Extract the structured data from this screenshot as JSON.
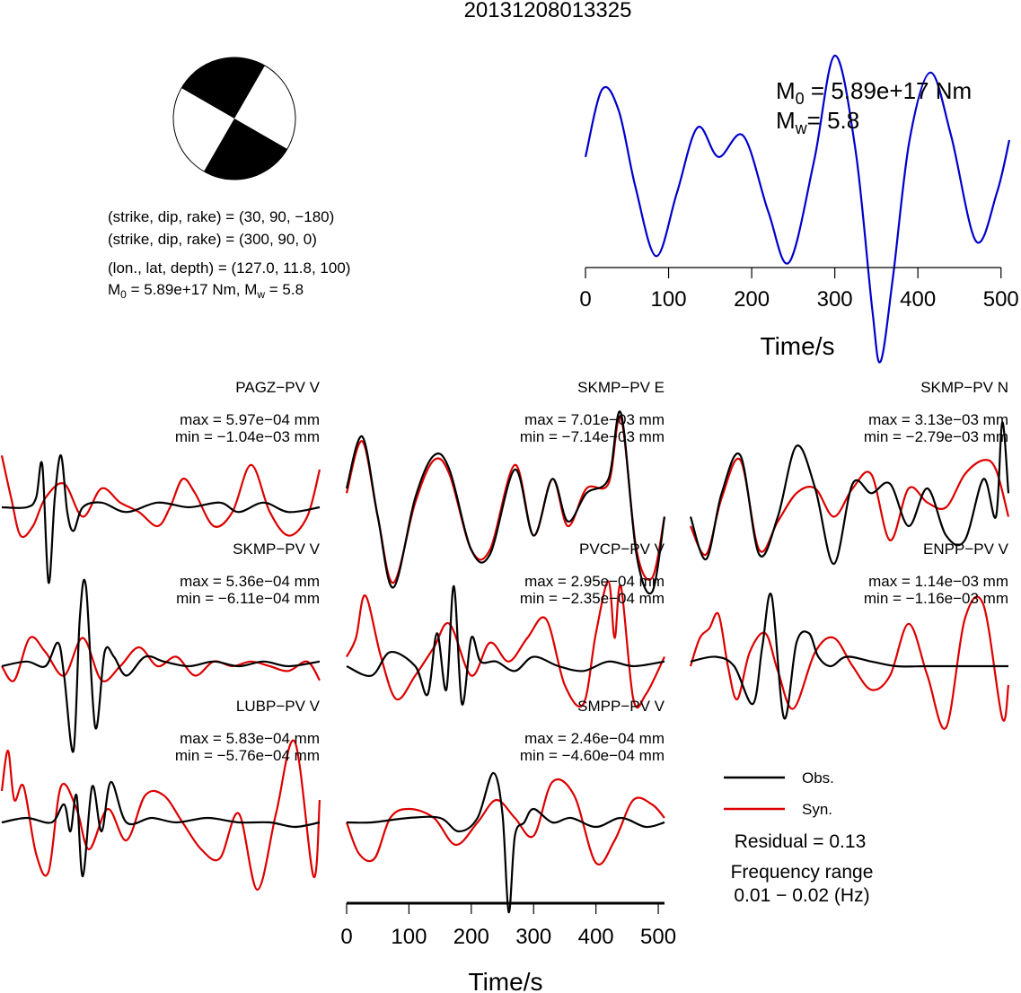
{
  "event_id": "20131208013325",
  "mechanism": {
    "line1": "(strike, dip, rake) = (30, 90, −180)",
    "line2": "(strike, dip, rake) = (300, 90, 0)",
    "line3": "(lon., lat, depth) = (127.0, 11.8, 100)",
    "m0_prefix": "M",
    "m0_sub": "0",
    "m0_text": " = 5.89e+17 Nm, M",
    "mw_sub": "w",
    "mw_text": " = 5.8"
  },
  "stf_label": {
    "m0_main": "M",
    "m0_sub": "0",
    "m0_value": " = 5.89e+17 Nm",
    "mw_main": "M",
    "mw_sub": "w",
    "mw_value": "= 5.8"
  },
  "legend": {
    "obs": "Obs.",
    "syn": "Syn.",
    "residual": "Residual = 0.13",
    "freq_label": "Frequency range",
    "freq_value": "0.01 − 0.02 (Hz)"
  },
  "colors": {
    "observed": "#000000",
    "synthetic": "#dd0000",
    "stf": "#0000cc"
  },
  "chart_data": [
    {
      "type": "line",
      "name": "source-time-function",
      "xlabel": "Time/s",
      "xlim": [
        0,
        510
      ],
      "xticks": [
        0,
        100,
        200,
        300,
        400,
        500
      ],
      "series": [
        {
          "x": [
            0,
            20,
            40,
            60,
            85,
            110,
            135,
            160,
            190,
            220,
            245,
            275,
            300,
            325,
            345,
            355,
            370,
            390,
            415,
            440,
            470,
            495,
            510
          ],
          "y": [
            0.52,
            0.84,
            0.74,
            0.38,
            0.05,
            0.35,
            0.66,
            0.52,
            0.62,
            0.26,
            0.02,
            0.5,
            1.0,
            0.55,
            -0.2,
            -0.45,
            -0.05,
            0.6,
            0.92,
            0.62,
            0.12,
            0.35,
            0.6
          ]
        }
      ]
    },
    {
      "type": "line",
      "name": "waveform-comparison",
      "xlabel": "Time/s",
      "xlim": [
        0,
        510
      ],
      "xticks": [
        0,
        100,
        200,
        300,
        400,
        500
      ],
      "panels": [
        {
          "title": "PAGZ−PV V",
          "max": "max = 5.97e−04 mm",
          "min": "min = −1.04e−03 mm",
          "obs": {
            "x": [
              0,
              40,
              55,
              65,
              75,
              85,
              95,
              105,
              115,
              130,
              160,
              200,
              250,
              300,
              350,
              380,
              420,
              460,
              510
            ],
            "y": [
              0,
              0,
              0.1,
              0.45,
              -0.8,
              0.1,
              0.55,
              -0.05,
              -0.25,
              0,
              0.05,
              -0.05,
              0.05,
              0,
              0.05,
              -0.05,
              0.05,
              -0.05,
              0
            ]
          },
          "syn": {
            "x": [
              0,
              15,
              30,
              50,
              70,
              100,
              130,
              160,
              190,
              220,
              250,
              270,
              290,
              310,
              340,
              370,
              400,
              430,
              460,
              490,
              510
            ],
            "y": [
              0.55,
              0.1,
              -0.3,
              -0.2,
              0.1,
              0.25,
              -0.1,
              0.2,
              0.05,
              -0.05,
              -0.2,
              0.0,
              0.3,
              0.15,
              -0.2,
              -0.05,
              0.45,
              -0.05,
              -0.3,
              -0.1,
              0.4
            ]
          }
        },
        {
          "title": "SKMP−PV E",
          "max": "max = 7.01e−03 mm",
          "min": "min = −7.14e−03 mm",
          "obs": {
            "x": [
              0,
              25,
              50,
              75,
              110,
              140,
              165,
              200,
              230,
              270,
              300,
              330,
              355,
              385,
              420,
              440,
              465,
              490,
              510
            ],
            "y": [
              0.2,
              0.75,
              -0.1,
              -0.85,
              0.1,
              0.55,
              0.4,
              -0.45,
              -0.5,
              0.4,
              -0.3,
              0.3,
              -0.15,
              0.15,
              0.3,
              1.0,
              -0.5,
              -0.9,
              -0.1
            ]
          },
          "syn": {
            "x": [
              0,
              25,
              50,
              75,
              110,
              140,
              165,
              200,
              230,
              270,
              300,
              330,
              355,
              385,
              420,
              440,
              465,
              490,
              510
            ],
            "y": [
              0.15,
              0.7,
              -0.1,
              -0.8,
              0.05,
              0.5,
              0.35,
              -0.45,
              -0.45,
              0.45,
              -0.3,
              0.3,
              -0.2,
              0.2,
              0.25,
              0.95,
              -0.45,
              -0.75,
              -0.1
            ]
          }
        },
        {
          "title": "SKMP−PV N",
          "max": "max = 3.13e−03 mm",
          "min": "min = −2.79e−03 mm",
          "obs": {
            "x": [
              0,
              25,
              50,
              80,
              110,
              140,
              170,
              200,
              230,
              260,
              290,
              320,
              350,
              380,
              410,
              440,
              470,
              490,
              500,
              510
            ],
            "y": [
              -0.1,
              -0.55,
              0.15,
              0.55,
              -0.5,
              -0.1,
              0.65,
              0.2,
              -0.6,
              0.25,
              0.15,
              0.25,
              -0.2,
              0.2,
              -0.3,
              -0.35,
              0.3,
              -0.1,
              0.9,
              0.15
            ]
          },
          "syn": {
            "x": [
              0,
              25,
              50,
              80,
              110,
              140,
              170,
              200,
              230,
              260,
              290,
              320,
              350,
              380,
              410,
              440,
              470,
              490,
              510
            ],
            "y": [
              -0.2,
              -0.5,
              0.1,
              0.5,
              -0.45,
              -0.15,
              0.15,
              0.2,
              -0.1,
              0.2,
              0.35,
              -0.35,
              0.2,
              0.05,
              0.0,
              0.35,
              0.5,
              0.4,
              -0.1
            ]
          }
        },
        {
          "title": "SKMP−PV V",
          "max": "max = 5.36e−04 mm",
          "min": "min = −6.11e−04 mm",
          "obs": {
            "x": [
              0,
              40,
              70,
              90,
              100,
              115,
              125,
              135,
              150,
              165,
              180,
              200,
              230,
              260,
              300,
              340,
              380,
              420,
              460,
              510
            ],
            "y": [
              0,
              0.05,
              0,
              0.25,
              -0.1,
              -0.9,
              0.5,
              0.85,
              -0.65,
              0.15,
              0.1,
              -0.1,
              0.1,
              0.05,
              0.0,
              0.05,
              0.0,
              0.05,
              0.0,
              0.05
            ]
          },
          "syn": {
            "x": [
              0,
              20,
              45,
              70,
              100,
              130,
              160,
              190,
              220,
              250,
              280,
              310,
              340,
              370,
              400,
              430,
              460,
              490,
              510
            ],
            "y": [
              0.0,
              -0.15,
              0.3,
              0.15,
              -0.1,
              0.3,
              -0.15,
              0.0,
              0.2,
              0.0,
              0.1,
              -0.1,
              0.05,
              0.0,
              0.05,
              0.0,
              -0.05,
              0.05,
              -0.15
            ]
          }
        },
        {
          "title": "PVCP−PV V",
          "max": "max = 2.95e−04 mm",
          "min": "min = −2.35e−04 mm",
          "obs": {
            "x": [
              0,
              40,
              70,
              110,
              130,
              145,
              160,
              172,
              185,
              200,
              215,
              240,
              270,
              300,
              340,
              380,
              420,
              460,
              510
            ],
            "y": [
              0.0,
              -0.1,
              0.15,
              0.0,
              -0.3,
              0.35,
              -0.25,
              0.85,
              -0.4,
              0.3,
              0.05,
              0.05,
              -0.05,
              0.1,
              0.0,
              -0.05,
              0.05,
              0.0,
              0.05
            ]
          },
          "syn": {
            "x": [
              0,
              15,
              30,
              55,
              80,
              110,
              140,
              165,
              200,
              230,
              260,
              290,
              320,
              350,
              380,
              400,
              420,
              430,
              440,
              460,
              480,
              510
            ],
            "y": [
              0.1,
              0.3,
              0.75,
              0.1,
              -0.35,
              -0.1,
              0.2,
              0.45,
              -0.1,
              0.25,
              0.05,
              0.3,
              0.5,
              -0.2,
              -0.4,
              0.35,
              0.9,
              0.3,
              0.85,
              -0.35,
              -0.3,
              0.1
            ]
          }
        },
        {
          "title": "ENPP−PV V",
          "max": "max = 1.14e−03 mm",
          "min": "min = −1.16e−03 mm",
          "obs": {
            "x": [
              0,
              40,
              70,
              100,
              115,
              130,
              150,
              170,
              190,
              205,
              225,
              250,
              290,
              330,
              380,
              430,
              470,
              510
            ],
            "y": [
              0.05,
              0.1,
              0.0,
              -0.4,
              0.2,
              0.75,
              -0.55,
              0.25,
              0.35,
              0.1,
              0.0,
              0.1,
              0.05,
              0.0,
              0.0,
              0.0,
              0.0,
              0.0
            ]
          },
          "syn": {
            "x": [
              0,
              15,
              30,
              45,
              60,
              75,
              95,
              120,
              140,
              165,
              200,
              230,
              260,
              290,
              320,
              350,
              380,
              410,
              440,
              470,
              500,
              510
            ],
            "y": [
              0.0,
              0.3,
              0.4,
              0.55,
              0.0,
              -0.35,
              0.15,
              0.35,
              -0.05,
              -0.45,
              0.15,
              0.3,
              0.0,
              -0.25,
              -0.1,
              0.45,
              -0.1,
              -0.65,
              0.5,
              0.65,
              -0.55,
              -0.2
            ]
          }
        },
        {
          "title": "LUBP−PV V",
          "max": "max = 5.83e−04 mm",
          "min": "min = −5.76e−04 mm",
          "obs": {
            "x": [
              0,
              40,
              80,
              100,
              110,
              120,
              130,
              145,
              160,
              175,
              200,
              240,
              280,
              330,
              380,
              430,
              470,
              510
            ],
            "y": [
              0.0,
              0.05,
              0.0,
              0.2,
              -0.1,
              0.3,
              -0.6,
              0.4,
              -0.1,
              0.45,
              0.0,
              0.05,
              0.0,
              0.05,
              0.0,
              0.0,
              -0.05,
              0.0
            ]
          },
          "syn": {
            "x": [
              0,
              10,
              20,
              35,
              55,
              75,
              95,
              120,
              140,
              170,
              200,
              230,
              260,
              290,
              320,
              350,
              380,
              410,
              440,
              470,
              500,
              510
            ],
            "y": [
              0.35,
              0.8,
              0.25,
              0.4,
              -0.35,
              -0.55,
              0.4,
              0.15,
              -0.3,
              0.15,
              -0.2,
              0.3,
              0.3,
              0.0,
              -0.3,
              -0.4,
              0.1,
              -0.75,
              0.1,
              0.9,
              -0.6,
              0.25
            ]
          }
        },
        {
          "title": "SMPP−PV V",
          "max": "max = 2.46e−04 mm",
          "min": "min = −4.60e−04 mm",
          "obs": {
            "x": [
              0,
              40,
              100,
              150,
              180,
              210,
              235,
              250,
              260,
              270,
              285,
              300,
              330,
              360,
              400,
              440,
              480,
              510
            ],
            "y": [
              0.0,
              0.0,
              0.05,
              0.05,
              -0.1,
              0.05,
              0.55,
              0.1,
              -1.0,
              -0.15,
              0.0,
              0.15,
              0.0,
              0.05,
              -0.05,
              0.05,
              -0.05,
              0.0
            ]
          },
          "syn": {
            "x": [
              0,
              20,
              45,
              70,
              100,
              140,
              175,
              210,
              240,
              270,
              300,
              330,
              365,
              400,
              430,
              460,
              490,
              510
            ],
            "y": [
              0.0,
              -0.35,
              -0.4,
              0.05,
              0.15,
              0.05,
              -0.25,
              0.0,
              0.25,
              0.05,
              -0.15,
              0.45,
              0.3,
              -0.45,
              -0.2,
              0.25,
              0.2,
              0.05
            ]
          }
        }
      ]
    }
  ]
}
